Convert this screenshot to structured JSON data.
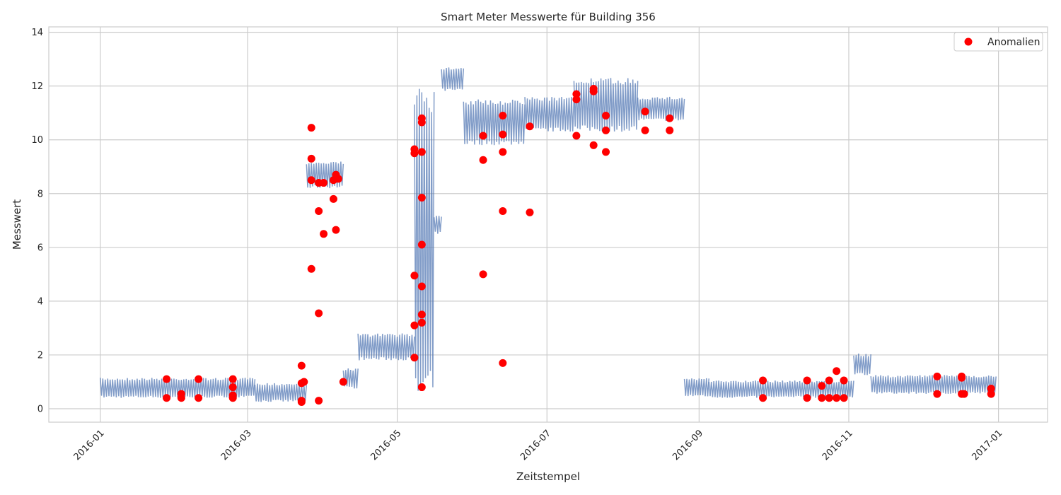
{
  "chart_data": {
    "type": "line",
    "title": "Smart Meter Messwerte für Building 356",
    "xlabel": "Zeitstempel",
    "ylabel": "Messwert",
    "xlim": [
      "2015-12-11",
      "2017-01-21"
    ],
    "ylim": [
      -0.5,
      14.2
    ],
    "x_ticks": [
      "2016-01",
      "2016-03",
      "2016-05",
      "2016-07",
      "2016-09",
      "2016-11",
      "2017-01"
    ],
    "y_ticks": [
      0,
      2,
      4,
      6,
      8,
      10,
      12,
      14
    ],
    "grid": true,
    "legend": {
      "position": "top-right",
      "entries": [
        "Anomalien"
      ]
    },
    "colors": {
      "line": "#4c72b0",
      "anomaly": "#ff0000"
    },
    "series": [
      {
        "type": "line",
        "segments": [
          {
            "start": "2016-01-01",
            "end": "2016-03-04",
            "low": 0.4,
            "high": 1.15
          },
          {
            "start": "2016-03-04",
            "end": "2016-03-25",
            "low": 0.25,
            "high": 0.95
          },
          {
            "start": "2016-03-25",
            "end": "2016-04-09",
            "low": 8.2,
            "high": 9.2
          },
          {
            "start": "2016-04-09",
            "end": "2016-04-15",
            "low": 0.75,
            "high": 1.5
          },
          {
            "start": "2016-04-15",
            "end": "2016-05-08",
            "low": 1.8,
            "high": 2.8
          },
          {
            "start": "2016-05-08",
            "end": "2016-05-16",
            "low": 0.15,
            "high": 12.5
          },
          {
            "start": "2016-05-16",
            "end": "2016-05-19",
            "low": 6.5,
            "high": 7.2
          },
          {
            "start": "2016-05-19",
            "end": "2016-05-28",
            "low": 11.8,
            "high": 12.7
          },
          {
            "start": "2016-05-28",
            "end": "2016-06-22",
            "low": 9.8,
            "high": 11.5
          },
          {
            "start": "2016-06-22",
            "end": "2016-07-12",
            "low": 10.3,
            "high": 11.6
          },
          {
            "start": "2016-07-12",
            "end": "2016-08-07",
            "low": 10.3,
            "high": 12.3
          },
          {
            "start": "2016-08-07",
            "end": "2016-08-26",
            "low": 10.7,
            "high": 11.6
          },
          {
            "start": "2016-08-26",
            "end": "2016-09-05",
            "low": 0.45,
            "high": 1.15
          },
          {
            "start": "2016-09-05",
            "end": "2016-11-03",
            "low": 0.4,
            "high": 1.05
          },
          {
            "start": "2016-11-03",
            "end": "2016-11-10",
            "low": 1.25,
            "high": 2.05
          },
          {
            "start": "2016-11-10",
            "end": "2016-12-31",
            "low": 0.55,
            "high": 1.25
          }
        ]
      },
      {
        "name": "Anomalien",
        "type": "scatter",
        "points": [
          [
            "2016-01-28",
            1.1
          ],
          [
            "2016-01-28",
            0.4
          ],
          [
            "2016-02-03",
            0.55
          ],
          [
            "2016-02-03",
            0.4
          ],
          [
            "2016-02-10",
            1.1
          ],
          [
            "2016-02-10",
            0.4
          ],
          [
            "2016-02-24",
            1.1
          ],
          [
            "2016-02-24",
            0.8
          ],
          [
            "2016-02-24",
            0.5
          ],
          [
            "2016-02-24",
            0.4
          ],
          [
            "2016-03-23",
            1.6
          ],
          [
            "2016-03-23",
            0.95
          ],
          [
            "2016-03-24",
            1.0
          ],
          [
            "2016-03-23",
            0.3
          ],
          [
            "2016-03-23",
            0.25
          ],
          [
            "2016-03-27",
            10.45
          ],
          [
            "2016-03-27",
            9.3
          ],
          [
            "2016-03-27",
            8.5
          ],
          [
            "2016-03-27",
            5.2
          ],
          [
            "2016-03-30",
            8.4
          ],
          [
            "2016-03-30",
            7.35
          ],
          [
            "2016-03-30",
            3.55
          ],
          [
            "2016-03-30",
            0.3
          ],
          [
            "2016-04-01",
            8.4
          ],
          [
            "2016-04-01",
            6.5
          ],
          [
            "2016-04-05",
            8.5
          ],
          [
            "2016-04-05",
            7.8
          ],
          [
            "2016-04-06",
            8.7
          ],
          [
            "2016-04-06",
            6.65
          ],
          [
            "2016-04-07",
            8.55
          ],
          [
            "2016-04-09",
            1.0
          ],
          [
            "2016-05-08",
            9.65
          ],
          [
            "2016-05-08",
            9.5
          ],
          [
            "2016-05-08",
            4.95
          ],
          [
            "2016-05-08",
            3.1
          ],
          [
            "2016-05-08",
            1.9
          ],
          [
            "2016-05-11",
            10.8
          ],
          [
            "2016-05-11",
            10.65
          ],
          [
            "2016-05-11",
            9.55
          ],
          [
            "2016-05-11",
            7.85
          ],
          [
            "2016-05-11",
            6.1
          ],
          [
            "2016-05-11",
            4.55
          ],
          [
            "2016-05-11",
            3.5
          ],
          [
            "2016-05-11",
            3.2
          ],
          [
            "2016-05-11",
            0.8
          ],
          [
            "2016-06-05",
            10.15
          ],
          [
            "2016-06-05",
            9.25
          ],
          [
            "2016-06-05",
            5.0
          ],
          [
            "2016-06-13",
            10.9
          ],
          [
            "2016-06-13",
            10.2
          ],
          [
            "2016-06-13",
            9.55
          ],
          [
            "2016-06-13",
            7.35
          ],
          [
            "2016-06-13",
            1.7
          ],
          [
            "2016-06-24",
            10.5
          ],
          [
            "2016-06-24",
            7.3
          ],
          [
            "2016-07-13",
            11.7
          ],
          [
            "2016-07-13",
            11.5
          ],
          [
            "2016-07-13",
            10.15
          ],
          [
            "2016-07-20",
            11.9
          ],
          [
            "2016-07-20",
            11.8
          ],
          [
            "2016-07-20",
            9.8
          ],
          [
            "2016-07-25",
            10.9
          ],
          [
            "2016-07-25",
            10.35
          ],
          [
            "2016-07-25",
            9.55
          ],
          [
            "2016-08-10",
            11.05
          ],
          [
            "2016-08-10",
            10.35
          ],
          [
            "2016-08-20",
            10.8
          ],
          [
            "2016-08-20",
            10.35
          ],
          [
            "2016-09-27",
            1.05
          ],
          [
            "2016-09-27",
            0.4
          ],
          [
            "2016-10-15",
            1.05
          ],
          [
            "2016-10-15",
            0.4
          ],
          [
            "2016-10-21",
            0.85
          ],
          [
            "2016-10-21",
            0.4
          ],
          [
            "2016-10-24",
            1.05
          ],
          [
            "2016-10-24",
            0.4
          ],
          [
            "2016-10-27",
            1.4
          ],
          [
            "2016-10-27",
            0.4
          ],
          [
            "2016-10-30",
            1.05
          ],
          [
            "2016-10-30",
            0.4
          ],
          [
            "2016-12-07",
            1.2
          ],
          [
            "2016-12-07",
            0.55
          ],
          [
            "2016-12-17",
            1.2
          ],
          [
            "2016-12-17",
            1.15
          ],
          [
            "2016-12-17",
            0.55
          ],
          [
            "2016-12-18",
            0.55
          ],
          [
            "2016-12-29",
            0.75
          ],
          [
            "2016-12-29",
            0.55
          ]
        ]
      }
    ]
  }
}
